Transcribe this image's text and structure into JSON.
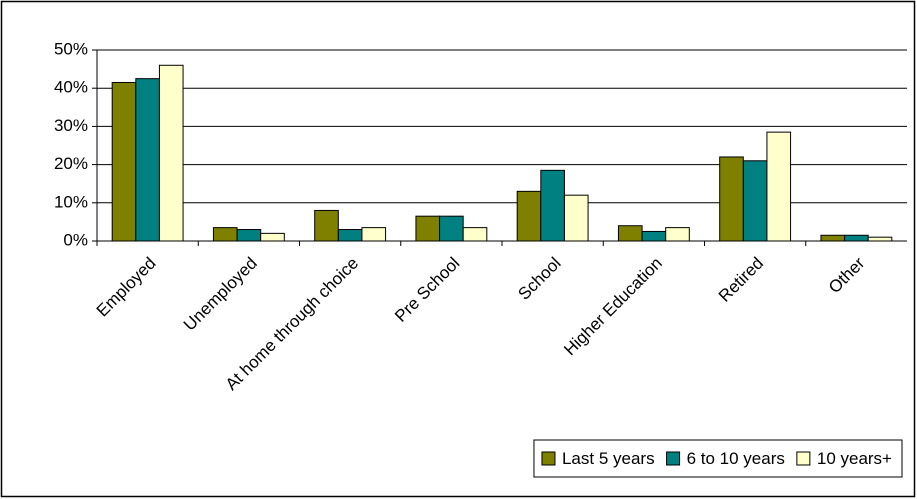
{
  "chart_data": {
    "type": "bar",
    "categories": [
      "Employed",
      "Unemployed",
      "At home through choice",
      "Pre School",
      "School",
      "Higher Education",
      "Retired",
      "Other"
    ],
    "series": [
      {
        "name": "Last 5 years",
        "color": "#808000",
        "values": [
          41.5,
          3.5,
          8,
          6.5,
          13,
          4,
          22,
          1.5
        ]
      },
      {
        "name": "6 to 10 years",
        "color": "#008080",
        "values": [
          42.5,
          3,
          3,
          6.5,
          18.5,
          2.5,
          21,
          1.5
        ]
      },
      {
        "name": "10 years+",
        "color": "#ffffcc",
        "values": [
          46,
          2,
          3.5,
          3.5,
          12,
          3.5,
          28.5,
          1
        ]
      }
    ],
    "ylim": [
      0,
      50
    ],
    "yticks": [
      {
        "value": 0,
        "label": "0%"
      },
      {
        "value": 10,
        "label": "10%"
      },
      {
        "value": 20,
        "label": "20%"
      },
      {
        "value": 30,
        "label": "30%"
      },
      {
        "value": 40,
        "label": "40%"
      },
      {
        "value": 50,
        "label": "50%"
      }
    ],
    "grid": true,
    "legend": "bottom-right"
  }
}
